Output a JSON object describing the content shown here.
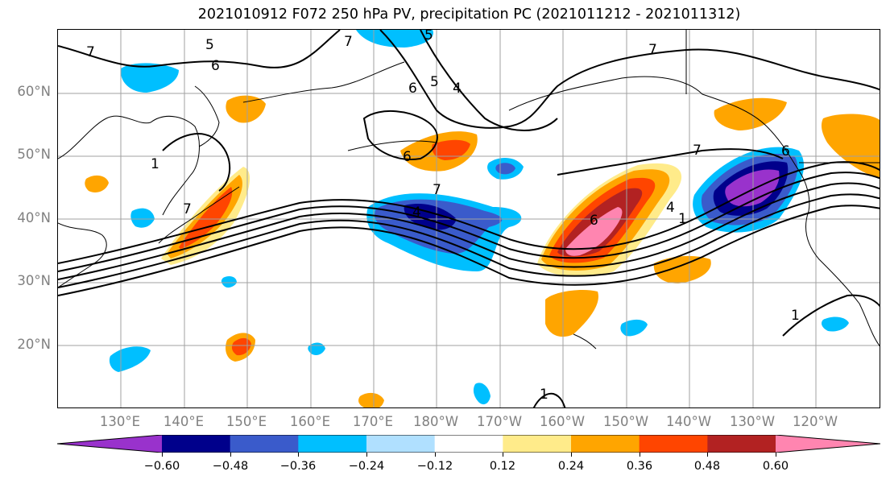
{
  "title": "2021010912 F072 250 hPa PV, precipitation PC (2021011212 - 2021011312)",
  "map": {
    "lat_labels": [
      "60°N",
      "50°N",
      "40°N",
      "30°N",
      "20°N"
    ],
    "lon_labels": [
      "130°E",
      "140°E",
      "150°E",
      "160°E",
      "170°E",
      "180°W",
      "170°W",
      "160°W",
      "150°W",
      "140°W",
      "130°W",
      "120°W"
    ],
    "contour_labels": [
      "7",
      "5",
      "7",
      "6",
      "6",
      "5",
      "4",
      "7",
      "6",
      "7",
      "4",
      "7",
      "5",
      "1",
      "6",
      "7",
      "4",
      "1",
      "6",
      "1",
      "1"
    ],
    "grid_color": "#a0a0a0",
    "coastline_color": "#000000"
  },
  "colorbar": {
    "colors": [
      "#9932cc",
      "#00008b",
      "#3a5bcb",
      "#00bfff",
      "#b0e0ff",
      "#ffffff",
      "#ffeb8a",
      "#ffa500",
      "#ff4500",
      "#b22222",
      "#ff85b0"
    ],
    "tick_labels": [
      "−0.60",
      "−0.48",
      "−0.36",
      "−0.24",
      "−0.12",
      "0.12",
      "0.24",
      "0.36",
      "0.48",
      "0.60"
    ],
    "levels": [
      -0.6,
      -0.48,
      -0.36,
      -0.24,
      -0.12,
      0.12,
      0.24,
      0.36,
      0.48,
      0.6
    ],
    "extend": "both"
  }
}
